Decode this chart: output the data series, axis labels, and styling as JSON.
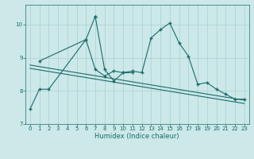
{
  "background_color": "#cce8e8",
  "grid_color": "#aad0d0",
  "line_color": "#1a6b6b",
  "marker": "+",
  "xlabel": "Humidex (Indice chaleur)",
  "xlim": [
    -0.5,
    23.5
  ],
  "ylim": [
    7,
    10.6
  ],
  "yticks": [
    7,
    8,
    9,
    10
  ],
  "xticks": [
    0,
    1,
    2,
    3,
    4,
    5,
    6,
    7,
    8,
    9,
    10,
    11,
    12,
    13,
    14,
    15,
    16,
    17,
    18,
    19,
    20,
    21,
    22,
    23
  ],
  "line1_x": [
    0,
    1,
    2,
    6,
    7
  ],
  "line1_y": [
    7.45,
    8.05,
    8.05,
    9.55,
    10.25
  ],
  "line2_x": [
    7,
    8,
    9,
    10,
    11
  ],
  "line2_y": [
    10.25,
    8.65,
    8.3,
    8.55,
    8.55
  ],
  "line3_x": [
    1,
    6,
    7,
    8,
    9,
    10,
    11,
    12,
    13,
    14,
    15,
    16,
    17,
    18,
    19,
    20,
    21,
    22,
    23
  ],
  "line3_y": [
    8.9,
    9.55,
    8.65,
    8.45,
    8.6,
    8.55,
    8.6,
    8.55,
    9.6,
    9.85,
    10.05,
    9.45,
    9.05,
    8.2,
    8.25,
    8.05,
    7.9,
    7.75,
    7.75
  ],
  "line4_x": [
    0,
    23
  ],
  "line4_y": [
    8.78,
    7.72
  ],
  "line5_x": [
    0,
    23
  ],
  "line5_y": [
    8.68,
    7.62
  ],
  "figsize": [
    3.2,
    2.0
  ],
  "dpi": 100
}
